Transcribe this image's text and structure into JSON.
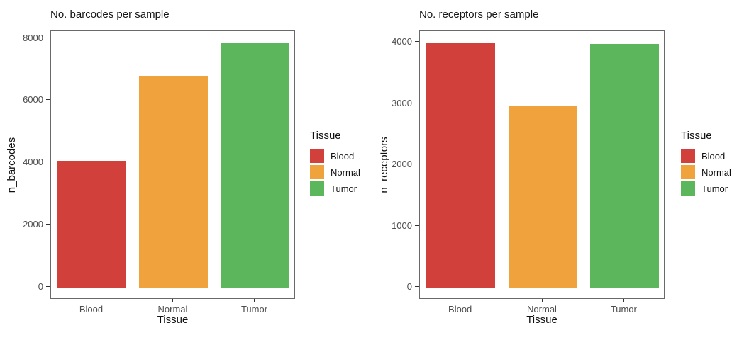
{
  "palette": {
    "Blood": "#d2403b",
    "Normal": "#f0a33d",
    "Tumor": "#5cb65c"
  },
  "style_colors": {
    "panel_border": "#696969",
    "axis_tick": "#333333",
    "tick_text": "#4d4d4d",
    "title_text": "#161616",
    "axis_title_text": "#111111",
    "background": "#ffffff"
  },
  "chart_data": [
    {
      "type": "bar",
      "title": "No. barcodes per sample",
      "xlabel": "Tissue",
      "ylabel": "n_barcodes",
      "categories": [
        "Blood",
        "Normal",
        "Tumor"
      ],
      "values": [
        4060,
        6800,
        7840
      ],
      "yticks": [
        0,
        2000,
        4000,
        6000,
        8000
      ],
      "ytick_labels": [
        "0",
        "2000",
        "4000",
        "6000",
        "8000"
      ],
      "ylim": [
        0,
        8000
      ],
      "panel_range": [
        -392,
        8228
      ],
      "grid": false,
      "legend": {
        "title": "Tissue",
        "position": "right",
        "entries": [
          "Blood",
          "Normal",
          "Tumor"
        ]
      }
    },
    {
      "type": "bar",
      "title": "No. receptors per sample",
      "xlabel": "Tissue",
      "ylabel": "n_receptors",
      "categories": [
        "Blood",
        "Normal",
        "Tumor"
      ],
      "values": [
        3980,
        2950,
        3970
      ],
      "yticks": [
        0,
        1000,
        2000,
        3000,
        4000
      ],
      "ytick_labels": [
        "0",
        "1000",
        "2000",
        "3000",
        "4000"
      ],
      "ylim": [
        0,
        4000
      ],
      "panel_range": [
        -200,
        4180
      ],
      "grid": false,
      "legend": {
        "title": "Tissue",
        "position": "right",
        "entries": [
          "Blood",
          "Normal",
          "Tumor"
        ]
      }
    }
  ]
}
